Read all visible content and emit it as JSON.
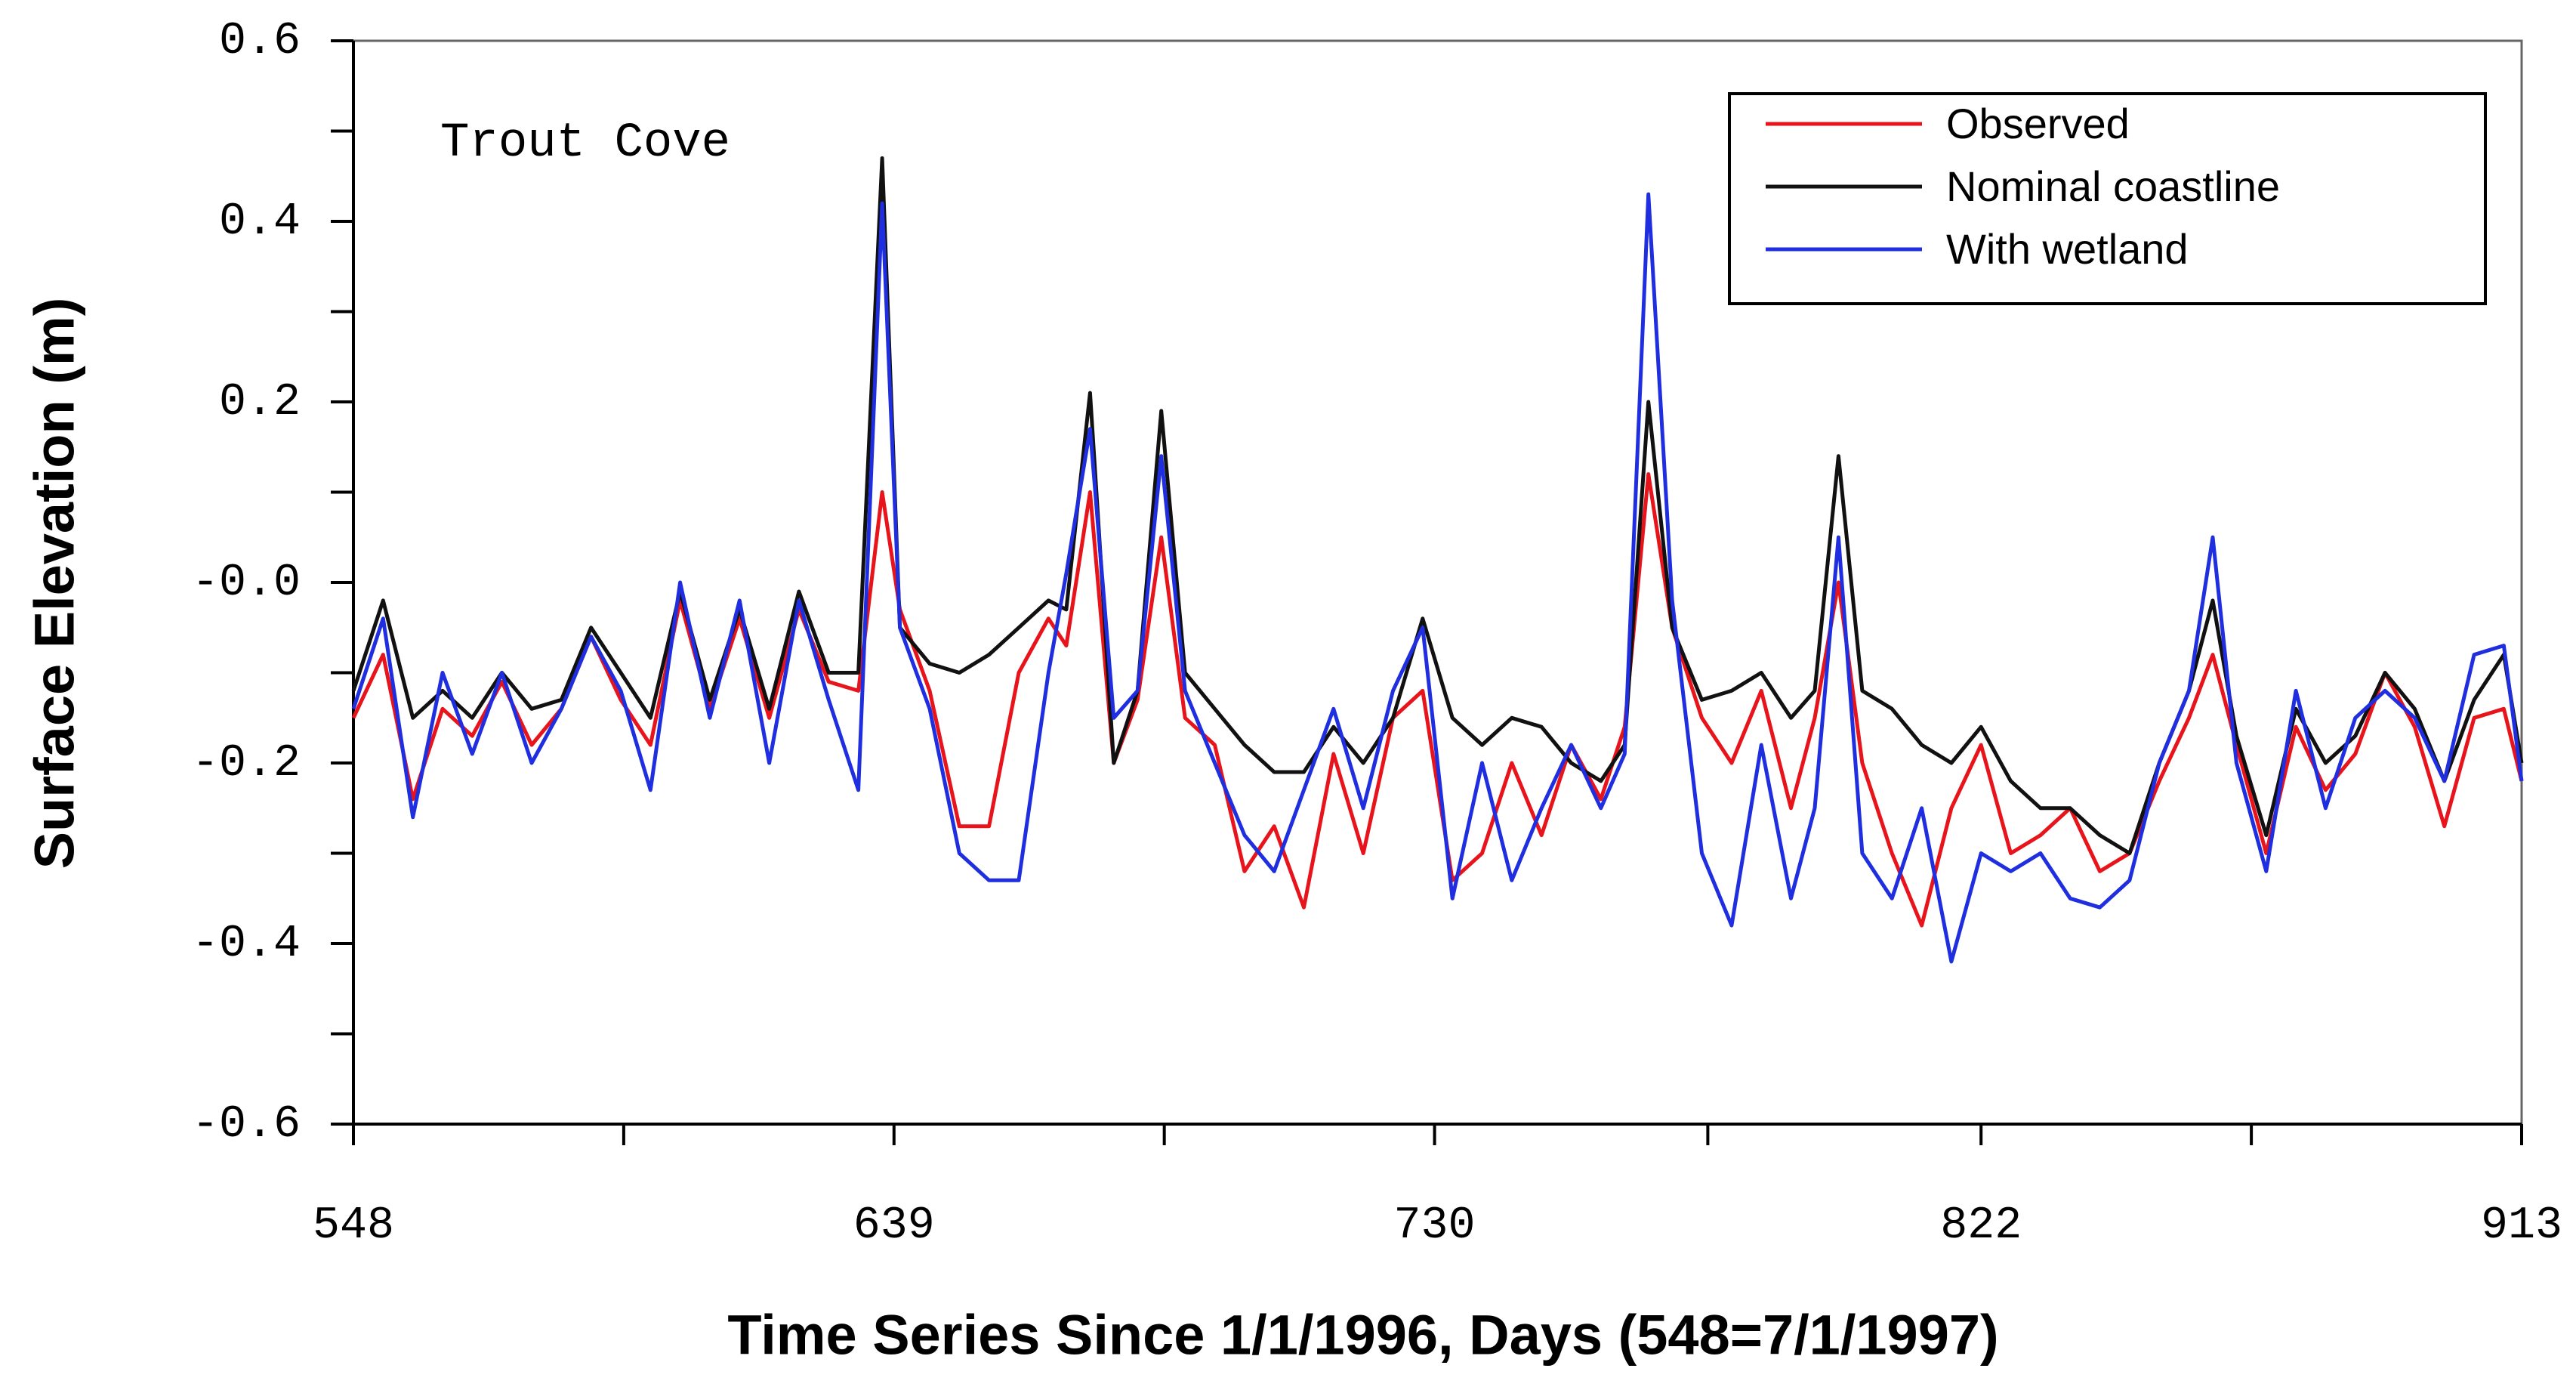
{
  "chart_data": {
    "type": "line",
    "annotation": "Trout Cove",
    "xlabel": "Time Series Since 1/1/1996, Days (548=7/1/1997)",
    "ylabel": "Surface Elevation (m)",
    "xlim": [
      548,
      913
    ],
    "ylim": [
      -0.6,
      0.6
    ],
    "xticks": [
      548,
      639,
      730,
      822,
      913
    ],
    "xminorticks": [
      593.5,
      684.5,
      776,
      867.5
    ],
    "yticks": [
      -0.6,
      -0.4,
      -0.2,
      {
        "value": 0,
        "label": "-0.0"
      },
      0.2,
      0.4,
      0.6
    ],
    "yminorticks": [
      -0.5,
      -0.3,
      -0.1,
      0.1,
      0.3,
      0.5
    ],
    "legend": "upper right",
    "x": [
      548,
      553,
      558,
      563,
      568,
      573,
      578,
      583,
      588,
      593,
      598,
      603,
      608,
      613,
      618,
      623,
      628,
      633,
      637,
      640,
      645,
      650,
      655,
      660,
      665,
      668,
      672,
      676,
      680,
      684,
      688,
      693,
      698,
      703,
      708,
      713,
      718,
      723,
      728,
      733,
      738,
      743,
      748,
      753,
      758,
      762,
      766,
      770,
      775,
      780,
      785,
      790,
      794,
      798,
      802,
      807,
      812,
      817,
      822,
      827,
      832,
      837,
      842,
      847,
      852,
      857,
      861,
      865,
      870,
      875,
      880,
      885,
      890,
      895,
      900,
      905,
      910,
      913
    ],
    "series": [
      {
        "name": "Observed",
        "color": "#e8141c",
        "values": [
          -0.15,
          -0.08,
          -0.24,
          -0.14,
          -0.17,
          -0.11,
          -0.18,
          -0.14,
          -0.06,
          -0.13,
          -0.18,
          -0.02,
          -0.14,
          -0.04,
          -0.15,
          -0.03,
          -0.11,
          -0.12,
          0.1,
          -0.03,
          -0.12,
          -0.27,
          -0.27,
          -0.1,
          -0.04,
          -0.07,
          0.1,
          -0.2,
          -0.13,
          0.05,
          -0.15,
          -0.18,
          -0.32,
          -0.27,
          -0.36,
          -0.19,
          -0.3,
          -0.15,
          -0.12,
          -0.33,
          -0.3,
          -0.2,
          -0.28,
          -0.18,
          -0.24,
          -0.16,
          0.12,
          -0.05,
          -0.15,
          -0.2,
          -0.12,
          -0.25,
          -0.15,
          0.0,
          -0.2,
          -0.3,
          -0.38,
          -0.25,
          -0.18,
          -0.3,
          -0.28,
          -0.25,
          -0.32,
          -0.3,
          -0.22,
          -0.15,
          -0.08,
          -0.18,
          -0.3,
          -0.16,
          -0.23,
          -0.19,
          -0.1,
          -0.16,
          -0.27,
          -0.15,
          -0.14,
          -0.22
        ]
      },
      {
        "name": "Nominal coastline",
        "color": "#111111",
        "values": [
          -0.12,
          -0.02,
          -0.15,
          -0.12,
          -0.15,
          -0.1,
          -0.14,
          -0.13,
          -0.05,
          -0.1,
          -0.15,
          -0.01,
          -0.13,
          -0.03,
          -0.14,
          -0.01,
          -0.1,
          -0.1,
          0.47,
          -0.05,
          -0.09,
          -0.1,
          -0.08,
          -0.05,
          -0.02,
          -0.03,
          0.21,
          -0.2,
          -0.12,
          0.19,
          -0.1,
          -0.14,
          -0.18,
          -0.21,
          -0.21,
          -0.16,
          -0.2,
          -0.15,
          -0.04,
          -0.15,
          -0.18,
          -0.15,
          -0.16,
          -0.2,
          -0.22,
          -0.18,
          0.2,
          -0.05,
          -0.13,
          -0.12,
          -0.1,
          -0.15,
          -0.12,
          0.14,
          -0.12,
          -0.14,
          -0.18,
          -0.2,
          -0.16,
          -0.22,
          -0.25,
          -0.25,
          -0.28,
          -0.3,
          -0.2,
          -0.12,
          -0.02,
          -0.17,
          -0.28,
          -0.14,
          -0.2,
          -0.17,
          -0.1,
          -0.14,
          -0.22,
          -0.13,
          -0.08,
          -0.2
        ]
      },
      {
        "name": "With wetland",
        "color": "#1f2fe0",
        "values": [
          -0.14,
          -0.04,
          -0.26,
          -0.1,
          -0.19,
          -0.1,
          -0.2,
          -0.14,
          -0.06,
          -0.12,
          -0.23,
          0.0,
          -0.15,
          -0.02,
          -0.2,
          -0.02,
          -0.13,
          -0.23,
          0.42,
          -0.05,
          -0.14,
          -0.3,
          -0.33,
          -0.33,
          -0.1,
          0.01,
          0.17,
          -0.15,
          -0.12,
          0.14,
          -0.12,
          -0.2,
          -0.28,
          -0.32,
          -0.23,
          -0.14,
          -0.25,
          -0.12,
          -0.05,
          -0.35,
          -0.2,
          -0.33,
          -0.25,
          -0.18,
          -0.25,
          -0.19,
          0.43,
          -0.02,
          -0.3,
          -0.38,
          -0.18,
          -0.35,
          -0.25,
          0.05,
          -0.3,
          -0.35,
          -0.25,
          -0.42,
          -0.3,
          -0.32,
          -0.3,
          -0.35,
          -0.36,
          -0.33,
          -0.2,
          -0.12,
          0.05,
          -0.2,
          -0.32,
          -0.12,
          -0.25,
          -0.15,
          -0.12,
          -0.15,
          -0.22,
          -0.08,
          -0.07,
          -0.22
        ]
      }
    ]
  }
}
